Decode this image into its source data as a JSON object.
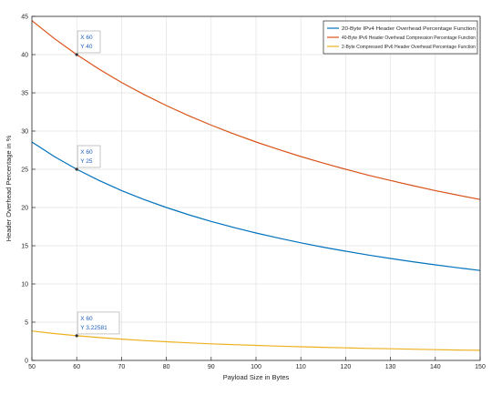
{
  "chart_data": {
    "type": "line",
    "xlabel": "Payload Size in Bytes",
    "ylabel": "Header Overhead Percentage in %",
    "xlim": [
      50,
      150
    ],
    "ylim": [
      0,
      45
    ],
    "x_ticks": [
      50,
      60,
      70,
      80,
      90,
      100,
      110,
      120,
      130,
      140,
      150
    ],
    "y_ticks": [
      0,
      5,
      10,
      15,
      20,
      25,
      30,
      35,
      40,
      45
    ],
    "grid": true,
    "legend_position": "top-right",
    "x": [
      50,
      55,
      60,
      65,
      70,
      75,
      80,
      85,
      90,
      95,
      100,
      105,
      110,
      115,
      120,
      125,
      130,
      135,
      140,
      145,
      150
    ],
    "series": [
      {
        "name": "20-Byte IPv4 Header Overhead Percentage Function",
        "color": "#0072BD",
        "values": [
          28.57,
          26.67,
          25.0,
          23.53,
          22.22,
          21.05,
          20.0,
          19.05,
          18.18,
          17.39,
          16.67,
          16.0,
          15.38,
          14.81,
          14.29,
          13.79,
          13.33,
          12.9,
          12.5,
          12.12,
          11.76
        ]
      },
      {
        "name": "40-Byte IPv6 Header Overhead Compression Percentage Function",
        "color": "#D95319",
        "values": [
          44.44,
          42.11,
          40.0,
          38.1,
          36.36,
          34.78,
          33.33,
          32.0,
          30.77,
          29.63,
          28.57,
          27.59,
          26.67,
          25.81,
          25.0,
          24.24,
          23.53,
          22.86,
          22.22,
          21.62,
          21.05
        ]
      },
      {
        "name": "2-Byte Compressed IPv6 Header Overhead Percentage Function",
        "color": "#EDB120",
        "values": [
          3.85,
          3.51,
          3.23,
          2.99,
          2.78,
          2.6,
          2.44,
          2.3,
          2.17,
          2.06,
          1.96,
          1.87,
          1.79,
          1.71,
          1.64,
          1.57,
          1.52,
          1.46,
          1.41,
          1.36,
          1.32
        ]
      }
    ],
    "datatips": [
      {
        "x": 60,
        "y": 40,
        "x_text": "X 60",
        "y_text": "Y 40"
      },
      {
        "x": 60,
        "y": 25,
        "x_text": "X 60",
        "y_text": "Y 25"
      },
      {
        "x": 60,
        "y": 3.2258,
        "x_text": "X 60",
        "y_text": "Y 3.22581"
      }
    ]
  }
}
